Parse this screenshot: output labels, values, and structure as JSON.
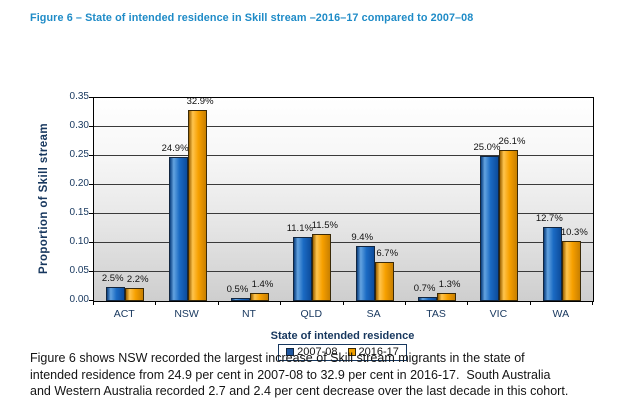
{
  "title": "Figure 6 – State of intended residence in Skill stream –2016–17 compared to 2007–08",
  "caption": {
    "lines": [
      "Figure 6 shows NSW recorded the largest increase of Skill stream migrants in the state of",
      "intended residence from 24.9 per cent in 2007-08 to 32.9 per cent in 2016-17.  South Australia",
      "and Western Australia recorded 2.7 and 2.4 per cent decrease over the last decade in this cohort."
    ]
  },
  "colors": {
    "title_blue": "#1E8BC7",
    "axis_navy": "#17375E",
    "series_2007_blue": "#1668C1",
    "series_2016_orange": "#F5A100",
    "plot_bg_top": "#FFFFFF",
    "plot_bg_bottom": "#CECECE"
  },
  "chart_data": {
    "type": "bar",
    "title": "",
    "xlabel": "State of intended residence",
    "ylabel": "Proportion of Skill stream",
    "ylim": [
      0,
      0.35
    ],
    "ytick_step": 0.05,
    "grid": true,
    "legend_position": "bottom",
    "categories": [
      "ACT",
      "NSW",
      "NT",
      "QLD",
      "SA",
      "TAS",
      "VIC",
      "WA"
    ],
    "series": [
      {
        "name": "2007-08",
        "values": [
          0.025,
          0.249,
          0.005,
          0.111,
          0.094,
          0.007,
          0.25,
          0.127
        ],
        "labels": [
          "2.5%",
          "24.9%",
          "0.5%",
          "11.1%",
          "9.4%",
          "0.7%",
          "25.0%",
          "12.7%"
        ],
        "color": "#1668C1"
      },
      {
        "name": "2016-17",
        "values": [
          0.022,
          0.329,
          0.014,
          0.115,
          0.067,
          0.013,
          0.261,
          0.103
        ],
        "labels": [
          "2.2%",
          "32.9%",
          "1.4%",
          "11.5%",
          "6.7%",
          "1.3%",
          "26.1%",
          "10.3%"
        ],
        "color": "#F5A100"
      }
    ]
  }
}
